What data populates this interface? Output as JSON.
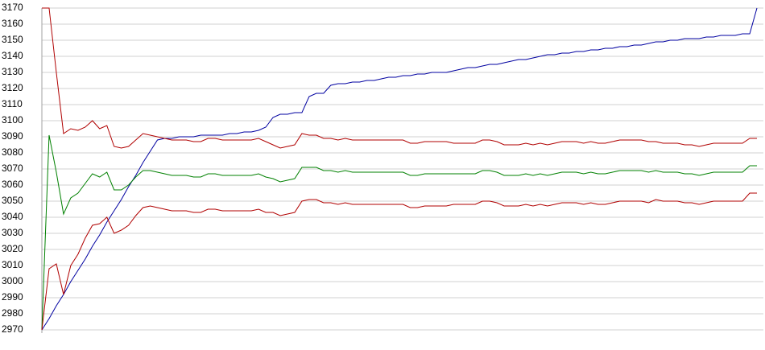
{
  "chart_data": {
    "type": "line",
    "ylim": [
      2970,
      3170
    ],
    "yticks": [
      2970,
      2980,
      2990,
      3000,
      3010,
      3020,
      3030,
      3040,
      3050,
      3060,
      3070,
      3080,
      3090,
      3100,
      3110,
      3120,
      3130,
      3140,
      3150,
      3160,
      3170
    ],
    "grid": true,
    "series": [
      {
        "color": "#0000a0",
        "values": [
          2970,
          2977,
          2985,
          2992,
          3000,
          3007,
          3014,
          3022,
          3029,
          3037,
          3044,
          3051,
          3059,
          3066,
          3074,
          3081,
          3088,
          3089,
          3089,
          3090,
          3090,
          3090,
          3091,
          3091,
          3091,
          3091,
          3092,
          3092,
          3093,
          3093,
          3094,
          3096,
          3102,
          3104,
          3104,
          3105,
          3105,
          3115,
          3117,
          3117,
          3122,
          3123,
          3123,
          3124,
          3124,
          3125,
          3125,
          3126,
          3127,
          3127,
          3128,
          3128,
          3129,
          3129,
          3130,
          3130,
          3130,
          3131,
          3132,
          3133,
          3133,
          3134,
          3135,
          3135,
          3136,
          3137,
          3138,
          3138,
          3139,
          3140,
          3141,
          3141,
          3142,
          3142,
          3143,
          3143,
          3144,
          3144,
          3145,
          3145,
          3146,
          3146,
          3147,
          3147,
          3148,
          3149,
          3149,
          3150,
          3150,
          3151,
          3151,
          3151,
          3152,
          3152,
          3153,
          3153,
          3153,
          3154,
          3154,
          3170
        ]
      },
      {
        "color": "#b00000",
        "values": [
          3170,
          3170,
          3130,
          3092,
          3095,
          3094,
          3096,
          3100,
          3095,
          3097,
          3084,
          3083,
          3084,
          3088,
          3092,
          3091,
          3090,
          3089,
          3088,
          3088,
          3088,
          3087,
          3087,
          3089,
          3089,
          3088,
          3088,
          3088,
          3088,
          3088,
          3089,
          3087,
          3085,
          3083,
          3084,
          3085,
          3092,
          3091,
          3091,
          3089,
          3089,
          3088,
          3089,
          3088,
          3088,
          3088,
          3088,
          3088,
          3088,
          3088,
          3088,
          3086,
          3086,
          3087,
          3087,
          3087,
          3087,
          3086,
          3086,
          3086,
          3086,
          3088,
          3088,
          3087,
          3085,
          3085,
          3085,
          3086,
          3085,
          3086,
          3085,
          3086,
          3087,
          3087,
          3087,
          3086,
          3087,
          3086,
          3086,
          3087,
          3088,
          3088,
          3088,
          3088,
          3087,
          3087,
          3086,
          3086,
          3086,
          3085,
          3085,
          3084,
          3085,
          3086,
          3086,
          3086,
          3086,
          3086,
          3089,
          3089
        ]
      },
      {
        "color": "#008000",
        "values": [
          2970,
          3091,
          3068,
          3042,
          3052,
          3055,
          3061,
          3067,
          3065,
          3068,
          3057,
          3057,
          3060,
          3065,
          3069,
          3069,
          3068,
          3067,
          3066,
          3066,
          3066,
          3065,
          3065,
          3067,
          3067,
          3066,
          3066,
          3066,
          3066,
          3066,
          3067,
          3065,
          3064,
          3062,
          3063,
          3064,
          3071,
          3071,
          3071,
          3069,
          3069,
          3068,
          3069,
          3068,
          3068,
          3068,
          3068,
          3068,
          3068,
          3068,
          3068,
          3066,
          3066,
          3067,
          3067,
          3067,
          3067,
          3067,
          3067,
          3067,
          3067,
          3069,
          3069,
          3068,
          3066,
          3066,
          3066,
          3067,
          3066,
          3067,
          3066,
          3067,
          3068,
          3068,
          3068,
          3067,
          3068,
          3067,
          3067,
          3068,
          3069,
          3069,
          3069,
          3069,
          3068,
          3069,
          3068,
          3068,
          3068,
          3067,
          3067,
          3066,
          3067,
          3068,
          3068,
          3068,
          3068,
          3068,
          3072,
          3072
        ]
      },
      {
        "color": "#b00000",
        "values": [
          2970,
          3008,
          3011,
          2992,
          3010,
          3017,
          3027,
          3035,
          3036,
          3040,
          3030,
          3032,
          3035,
          3041,
          3046,
          3047,
          3046,
          3045,
          3044,
          3044,
          3044,
          3043,
          3043,
          3045,
          3045,
          3044,
          3044,
          3044,
          3044,
          3044,
          3045,
          3043,
          3043,
          3041,
          3042,
          3043,
          3050,
          3051,
          3051,
          3049,
          3049,
          3048,
          3049,
          3048,
          3048,
          3048,
          3048,
          3048,
          3048,
          3048,
          3048,
          3046,
          3046,
          3047,
          3047,
          3047,
          3047,
          3048,
          3048,
          3048,
          3048,
          3050,
          3050,
          3049,
          3047,
          3047,
          3047,
          3048,
          3047,
          3048,
          3047,
          3048,
          3049,
          3049,
          3049,
          3048,
          3049,
          3048,
          3048,
          3049,
          3050,
          3050,
          3050,
          3050,
          3049,
          3051,
          3050,
          3050,
          3050,
          3049,
          3049,
          3048,
          3049,
          3050,
          3050,
          3050,
          3050,
          3050,
          3055,
          3055
        ]
      }
    ]
  }
}
